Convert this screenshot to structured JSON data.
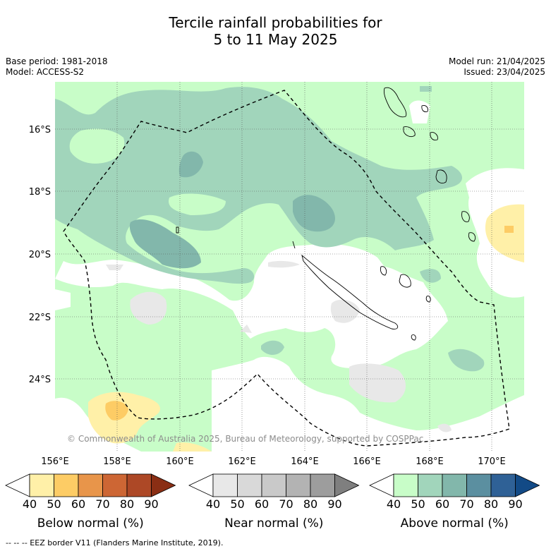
{
  "title_line1": "Tercile rainfall probabilities for",
  "title_line2": "5 to 11 May 2025",
  "base_period": "Base period: 1981-2018",
  "model": "Model: ACCESS-S2",
  "model_run": "Model run: 21/04/2025",
  "issued": "Issued: 23/04/2025",
  "copyright": "© Commonwealth of Australia 2025, Bureau of Meteorology, supported by COSPPac",
  "footer": "--  --  -- EEZ border V11 (Flanders Marine Institute, 2019).",
  "axes": {
    "x_ticks": [
      "156°E",
      "158°E",
      "160°E",
      "162°E",
      "164°E",
      "166°E",
      "168°E",
      "170°E"
    ],
    "y_ticks": [
      "16°S",
      "18°S",
      "20°S",
      "22°S",
      "24°S"
    ]
  },
  "colorbars": [
    {
      "label": "Below normal (%)",
      "ticks": [
        "40",
        "50",
        "60",
        "70",
        "80",
        "90"
      ],
      "colors": [
        "#ffffff",
        "#fff0a8",
        "#fdcc65",
        "#e8954a",
        "#cd6634",
        "#ad4826",
        "#8a2e14"
      ]
    },
    {
      "label": "Near normal (%)",
      "ticks": [
        "40",
        "50",
        "60",
        "70",
        "80",
        "90"
      ],
      "colors": [
        "#ffffff",
        "#e8e8e8",
        "#d9d9d9",
        "#c9c9c9",
        "#b3b3b3",
        "#9d9d9d",
        "#7f7f7f"
      ]
    },
    {
      "label": "Above normal (%)",
      "ticks": [
        "40",
        "50",
        "60",
        "70",
        "80",
        "90"
      ],
      "colors": [
        "#ffffff",
        "#c8fdc8",
        "#a1d5bb",
        "#82b7ab",
        "#5b8fa0",
        "#2f6196",
        "#124a86"
      ]
    }
  ]
}
